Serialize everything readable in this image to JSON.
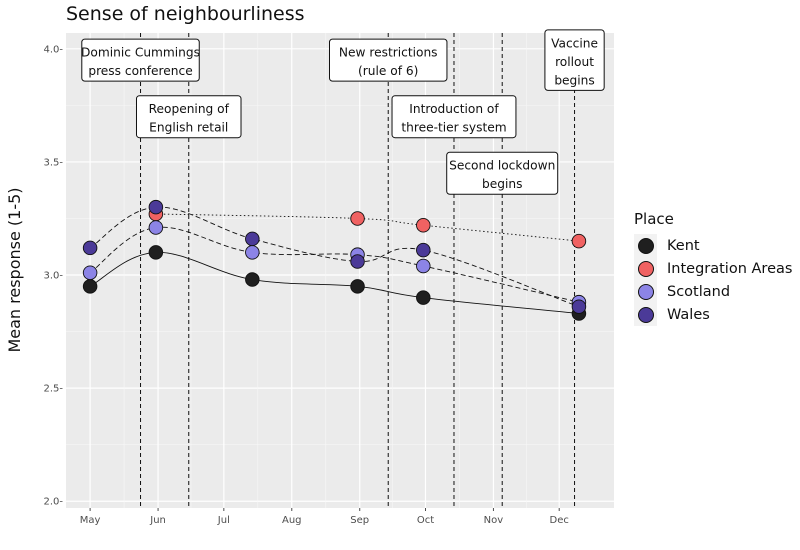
{
  "chart_data": {
    "type": "line",
    "title": "Sense of neighbourliness",
    "ylabel": "Mean response (1-5)",
    "xlabel": "",
    "ylim": [
      1.97,
      4.07
    ],
    "yticks": [
      2.0,
      2.5,
      3.0,
      3.5,
      4.0
    ],
    "ytick_labels": [
      "2.0-",
      "2.5-",
      "3.0-",
      "3.5-",
      "4.0-"
    ],
    "xlim": [
      "2020-04-20",
      "2020-12-26"
    ],
    "xticks": [
      "2020-05-01",
      "2020-06-01",
      "2020-07-01",
      "2020-08-01",
      "2020-09-01",
      "2020-10-01",
      "2020-11-01",
      "2020-12-01"
    ],
    "xtick_labels": [
      "May",
      "Jun",
      "Jul",
      "Aug",
      "Sep",
      "Oct",
      "Nov",
      "Dec"
    ],
    "grid": true,
    "legend_title": "Place",
    "legend_position": "right",
    "series": [
      {
        "name": "Kent",
        "color": "#1f1f1f",
        "dash": "solid",
        "x": [
          "2020-05-01",
          "2020-05-31",
          "2020-07-14",
          "2020-08-31",
          "2020-09-30",
          "2020-12-10"
        ],
        "y": [
          2.95,
          3.1,
          2.98,
          2.95,
          2.9,
          2.83
        ]
      },
      {
        "name": "Integration Areas",
        "color": "#f06262",
        "dash": "dotted",
        "x": [
          "2020-05-31",
          "2020-08-31",
          "2020-09-30",
          "2020-12-10"
        ],
        "y": [
          3.27,
          3.25,
          3.22,
          3.15
        ]
      },
      {
        "name": "Scotland",
        "color": "#8c84e6",
        "dash": "dashed",
        "x": [
          "2020-05-01",
          "2020-05-31",
          "2020-07-14",
          "2020-08-31",
          "2020-09-30",
          "2020-12-10"
        ],
        "y": [
          3.01,
          3.21,
          3.1,
          3.09,
          3.04,
          2.88
        ]
      },
      {
        "name": "Wales",
        "color": "#4b3a98",
        "dash": "dashed",
        "x": [
          "2020-05-01",
          "2020-05-31",
          "2020-07-14",
          "2020-08-31",
          "2020-09-30",
          "2020-12-10"
        ],
        "y": [
          3.12,
          3.3,
          3.16,
          3.06,
          3.11,
          2.86
        ]
      }
    ],
    "events": [
      {
        "date": "2020-05-24",
        "label": [
          "Dominic Cummings",
          "press conference"
        ],
        "y": 3.95
      },
      {
        "date": "2020-06-15",
        "label": [
          "Reopening of",
          "English retail"
        ],
        "y": 3.7
      },
      {
        "date": "2020-09-14",
        "label": [
          "New restrictions",
          "(rule of 6)"
        ],
        "y": 3.95
      },
      {
        "date": "2020-10-14",
        "label": [
          "Introduction of",
          "three-tier system"
        ],
        "y": 3.7
      },
      {
        "date": "2020-11-05",
        "label": [
          "Second lockdown",
          "begins"
        ],
        "y": 3.45
      },
      {
        "date": "2020-12-08",
        "label": [
          "Vaccine",
          "rollout",
          "begins"
        ],
        "y": 3.95
      }
    ]
  }
}
